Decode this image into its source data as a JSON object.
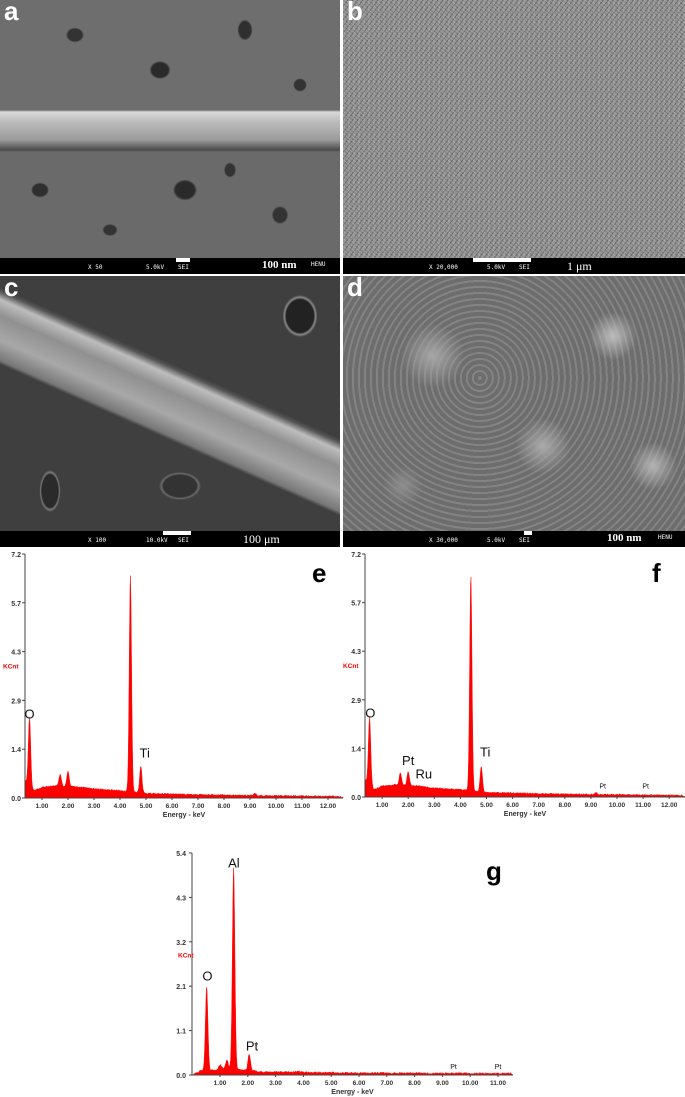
{
  "sem_panels": [
    {
      "letter": "a",
      "magnification": "X 50",
      "voltage": "5.0kV",
      "detector": "SEI",
      "scale": "100 nm",
      "label": "HENU"
    },
    {
      "letter": "b",
      "magnification": "X 20,000",
      "voltage": "5.0kV",
      "detector": "SEI",
      "scale": "1 μm"
    },
    {
      "letter": "c",
      "magnification": "X 100",
      "voltage": "10.0kV",
      "detector": "SEI",
      "scale": "100 μm"
    },
    {
      "letter": "d",
      "magnification": "X 30,000",
      "voltage": "5.0kV",
      "detector": "SEI",
      "scale": "100 nm",
      "label": "HENU"
    }
  ],
  "chart_data": [
    {
      "panel": "e",
      "type": "area",
      "xlabel": "Energy - keV",
      "ylabel": "KCnt",
      "xlim": [
        0.35,
        12.5
      ],
      "ylim": [
        0,
        7.2
      ],
      "yticks": [
        "0.0",
        "1.4",
        "2.9",
        "4.3",
        "5.7",
        "7.2"
      ],
      "xticks": [
        "1.00",
        "2.00",
        "3.00",
        "4.00",
        "5.00",
        "6.00",
        "7.00",
        "8.00",
        "9.00",
        "10.00",
        "11.00",
        "12.00"
      ],
      "color": "#ff0000",
      "background": [
        [
          0.35,
          0.5
        ],
        [
          0.7,
          0.2
        ],
        [
          1.0,
          0.3
        ],
        [
          1.5,
          0.35
        ],
        [
          2.5,
          0.3
        ],
        [
          3.0,
          0.25
        ],
        [
          4.0,
          0.2
        ],
        [
          5.0,
          0.12
        ],
        [
          7.0,
          0.08
        ],
        [
          10.0,
          0.05
        ],
        [
          12.5,
          0.03
        ]
      ],
      "peaks": [
        {
          "energy": 0.52,
          "kcnt": 2.0
        },
        {
          "energy": 1.7,
          "kcnt": 0.35
        },
        {
          "energy": 2.0,
          "kcnt": 0.45
        },
        {
          "energy": 4.4,
          "kcnt": 6.4
        },
        {
          "energy": 4.8,
          "kcnt": 0.8
        },
        {
          "energy": 9.2,
          "kcnt": 0.05
        }
      ],
      "annotations": [
        {
          "text": "O",
          "energy": 0.52,
          "kcnt": 2.35
        },
        {
          "text": "Ti",
          "energy": 4.95,
          "kcnt": 1.2
        }
      ]
    },
    {
      "panel": "f",
      "type": "area",
      "xlabel": "Energy - keV",
      "ylabel": "KCnt",
      "xlim": [
        0.35,
        12.5
      ],
      "ylim": [
        0,
        7.2
      ],
      "yticks": [
        "0.0",
        "1.4",
        "2.9",
        "4.3",
        "5.7",
        "7.2"
      ],
      "xticks": [
        "1.00",
        "2.00",
        "3.00",
        "4.00",
        "5.00",
        "6.00",
        "7.00",
        "8.00",
        "9.00",
        "10.00",
        "11.00",
        "12.00"
      ],
      "color": "#ff0000",
      "background": [
        [
          0.35,
          0.5
        ],
        [
          0.7,
          0.2
        ],
        [
          1.0,
          0.3
        ],
        [
          1.5,
          0.35
        ],
        [
          2.5,
          0.3
        ],
        [
          3.0,
          0.25
        ],
        [
          4.0,
          0.2
        ],
        [
          5.0,
          0.12
        ],
        [
          7.0,
          0.08
        ],
        [
          10.0,
          0.05
        ],
        [
          12.5,
          0.03
        ]
      ],
      "peaks": [
        {
          "energy": 0.52,
          "kcnt": 2.0
        },
        {
          "energy": 1.7,
          "kcnt": 0.35
        },
        {
          "energy": 2.0,
          "kcnt": 0.4
        },
        {
          "energy": 4.4,
          "kcnt": 6.4
        },
        {
          "energy": 4.8,
          "kcnt": 0.75
        },
        {
          "energy": 9.2,
          "kcnt": 0.05
        }
      ],
      "annotations": [
        {
          "text": "O",
          "energy": 0.55,
          "kcnt": 2.35
        },
        {
          "text": "Pt",
          "energy": 2.0,
          "kcnt": 0.95
        },
        {
          "text": "Ru",
          "energy": 2.6,
          "kcnt": 0.55
        },
        {
          "text": "Ti",
          "energy": 4.95,
          "kcnt": 1.2
        },
        {
          "text": "Pt",
          "energy": 9.45,
          "kcnt": 0.25
        },
        {
          "text": "Pt",
          "energy": 11.1,
          "kcnt": 0.25
        }
      ]
    },
    {
      "panel": "g",
      "type": "area",
      "xlabel": "Energy - keV",
      "ylabel": "KCnt",
      "xlim": [
        0,
        11.5
      ],
      "ylim": [
        0,
        5.4
      ],
      "yticks": [
        "0.0",
        "1.1",
        "2.1",
        "3.2",
        "4.3",
        "5.4"
      ],
      "xticks": [
        "1.00",
        "2.00",
        "3.00",
        "4.00",
        "5.00",
        "6.00",
        "7.00",
        "8.00",
        "9.00",
        "10.00",
        "11.00"
      ],
      "color": "#ff0000",
      "background": [
        [
          0.1,
          0.02
        ],
        [
          0.3,
          0.08
        ],
        [
          0.8,
          0.1
        ],
        [
          1.2,
          0.15
        ],
        [
          2.5,
          0.06
        ],
        [
          4.0,
          0.05
        ],
        [
          6.0,
          0.03
        ],
        [
          11.5,
          0.02
        ]
      ],
      "peaks": [
        {
          "energy": 0.52,
          "kcnt": 2.05
        },
        {
          "energy": 1.0,
          "kcnt": 0.1
        },
        {
          "energy": 1.25,
          "kcnt": 0.2
        },
        {
          "energy": 1.49,
          "kcnt": 4.9
        },
        {
          "energy": 2.05,
          "kcnt": 0.4
        },
        {
          "energy": 3.8,
          "kcnt": 0.03
        }
      ],
      "annotations": [
        {
          "text": "O",
          "energy": 0.55,
          "kcnt": 2.3
        },
        {
          "text": "Al",
          "energy": 1.5,
          "kcnt": 5.05
        },
        {
          "text": "Pt",
          "energy": 2.15,
          "kcnt": 0.6
        },
        {
          "text": "Pt",
          "energy": 9.4,
          "kcnt": 0.15
        },
        {
          "text": "Pt",
          "energy": 11.0,
          "kcnt": 0.15
        }
      ]
    }
  ]
}
